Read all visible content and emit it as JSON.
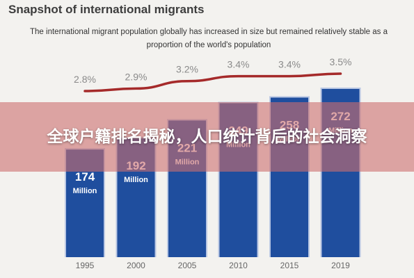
{
  "chart_data": {
    "type": "bar",
    "title": "Snapshot of international migrants",
    "subtitle": "The international migrant population globally has increased in size but remained relatively stable as a proportion of the world's population",
    "categories": [
      "1995",
      "2000",
      "2005",
      "2010",
      "2015",
      "2019"
    ],
    "series": [
      {
        "values": [
          174,
          192,
          221,
          249,
          258,
          272
        ],
        "value_labels": [
          "174",
          "192",
          "221",
          "249",
          "258",
          "272"
        ],
        "unit_label": "Million",
        "color": "#1f4e9e"
      },
      {
        "values": [
          2.8,
          2.9,
          3.2,
          3.4,
          3.4,
          3.5
        ],
        "value_labels": [
          "2.8%",
          "2.9%",
          "3.2%",
          "3.4%",
          "3.4%",
          "3.5%"
        ],
        "color": "#a52a2a",
        "chart_type": "line"
      }
    ],
    "ylim": [
      0,
      272
    ],
    "line_ylim": [
      2.8,
      3.5
    ],
    "grid": false,
    "legend": "none"
  },
  "overlay": {
    "banner_text": "全球户籍排名揭秘，人口统计背后的社会洞察",
    "banner_color": "#cd6e6e"
  }
}
